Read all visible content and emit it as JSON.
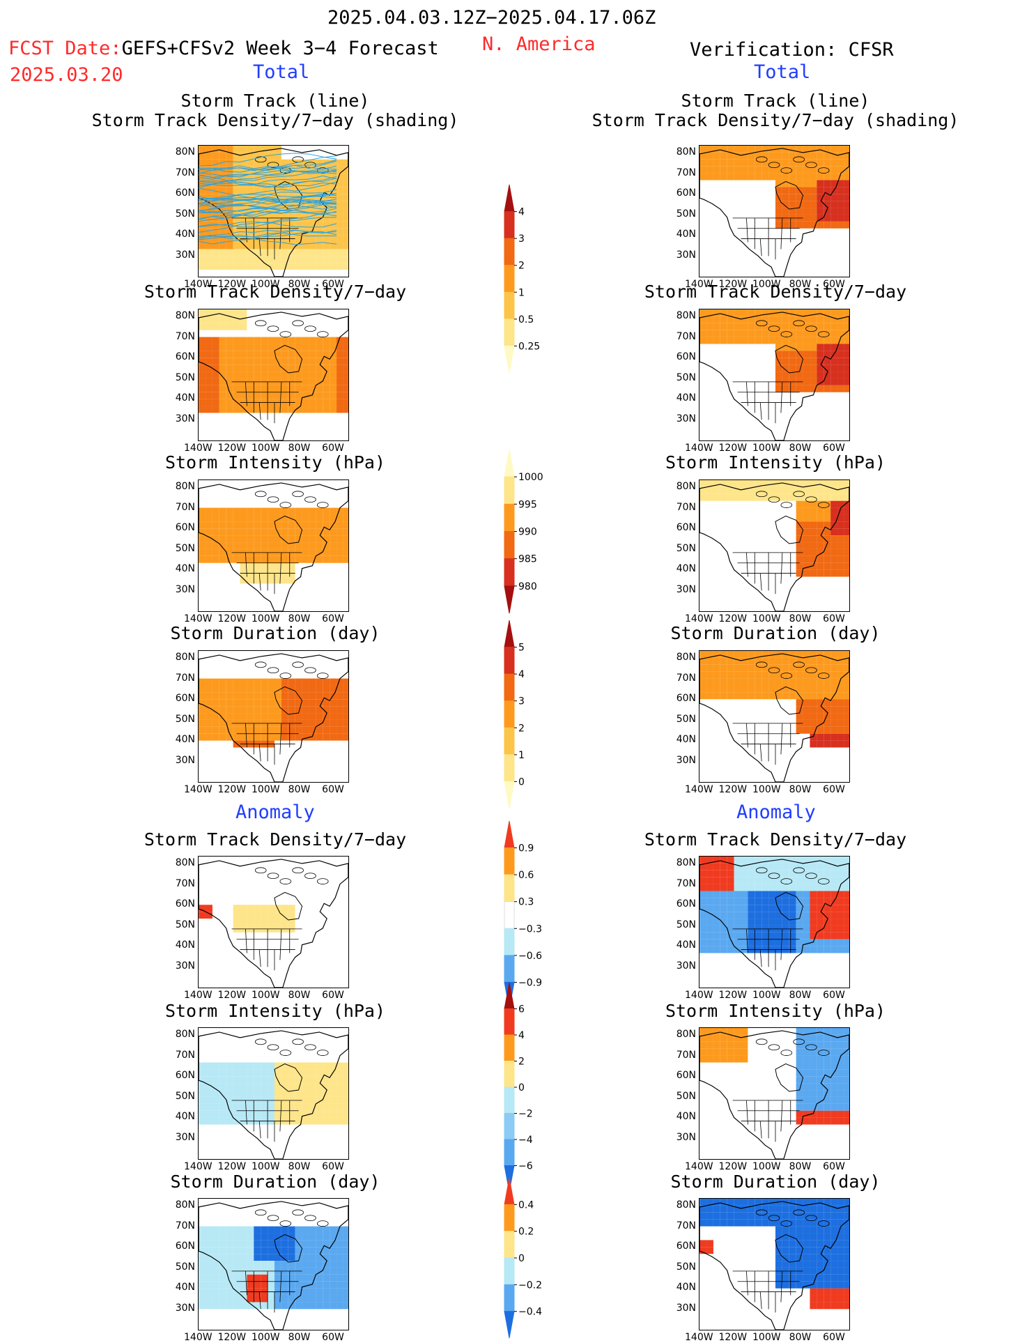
{
  "header": {
    "period": "2025.04.03.12Z−2025.04.17.06Z",
    "fcst_label": "FCST Date:",
    "fcst_model": "GEFS+CFSv2 Week 3−4 Forecast",
    "fcst_date": "2025.03.20",
    "region": "N. America",
    "verification": "Verification: CFSR"
  },
  "sections": {
    "total": "Total",
    "anomaly": "Anomaly"
  },
  "panels": [
    {
      "row": 0,
      "title1": "Storm Track (line)",
      "title2": "Storm Track Density/7−day (shading)"
    },
    {
      "row": 1,
      "title1": "Storm Track Density/7−day",
      "title2": ""
    },
    {
      "row": 2,
      "title1": "Storm Intensity (hPa)",
      "title2": ""
    },
    {
      "row": 3,
      "title1": "Storm Duration (day)",
      "title2": ""
    },
    {
      "row": 4,
      "title1": "Storm Track Density/7−day",
      "title2": ""
    },
    {
      "row": 5,
      "title1": "Storm Intensity (hPa)",
      "title2": ""
    },
    {
      "row": 6,
      "title1": "Storm Duration (day)",
      "title2": ""
    }
  ],
  "axes": {
    "lat_labels": [
      "80N",
      "70N",
      "60N",
      "50N",
      "40N",
      "30N"
    ],
    "lon_labels": [
      "140W",
      "120W",
      "100W",
      "80W",
      "60W"
    ]
  },
  "colorbars": [
    {
      "name": "density-total",
      "labels": [
        "4",
        "3",
        "2",
        "1",
        "0.5",
        "0.25"
      ],
      "colors": [
        "#a50f0f",
        "#d7301f",
        "#f16913",
        "#fd9a1e",
        "#fdc44a",
        "#fee58a",
        "#fff9c4"
      ]
    },
    {
      "name": "intensity-total",
      "labels": [
        "1000",
        "995",
        "990",
        "985",
        "980"
      ],
      "colors": [
        "#fff9c4",
        "#fee58a",
        "#fd9a1e",
        "#f16913",
        "#d7301f",
        "#a50f0f"
      ]
    },
    {
      "name": "duration-total",
      "labels": [
        "5",
        "4",
        "3",
        "2",
        "1",
        "0"
      ],
      "colors": [
        "#a50f0f",
        "#d7301f",
        "#f16913",
        "#fd9a1e",
        "#fdc44a",
        "#fee58a",
        "#fff9c4"
      ]
    },
    {
      "name": "density-anom",
      "labels": [
        "0.9",
        "0.6",
        "0.3",
        "−0.3",
        "−0.6",
        "−0.9"
      ],
      "colors": [
        "#f03b20",
        "#fd9a1e",
        "#fee58a",
        "#ffffff",
        "#b7e8f5",
        "#5aa8f0",
        "#1d6fe0"
      ]
    },
    {
      "name": "intensity-anom",
      "labels": [
        "6",
        "4",
        "2",
        "0",
        "−2",
        "−4",
        "−6"
      ],
      "colors": [
        "#a50f0f",
        "#f03b20",
        "#fd9a1e",
        "#fee58a",
        "#b7e8f5",
        "#8ccbf5",
        "#5aa8f0",
        "#1d6fe0"
      ]
    },
    {
      "name": "duration-anom",
      "labels": [
        "0.4",
        "0.2",
        "0",
        "−0.2",
        "−0.4"
      ],
      "colors": [
        "#f03b20",
        "#fd9a1e",
        "#fee58a",
        "#b7e8f5",
        "#5aa8f0",
        "#1d6fe0"
      ]
    }
  ],
  "colors": {
    "title_red": "#ff2a2a",
    "section_blue": "#1f3dff",
    "track_line": "#29a3e0"
  }
}
